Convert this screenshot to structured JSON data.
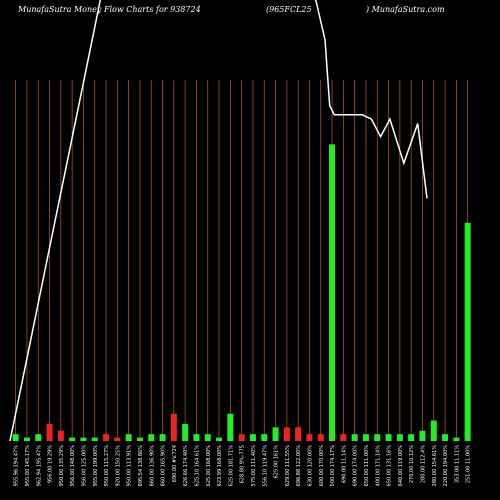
{
  "header": {
    "left": "MunafaSutra  Money Flow  Charts for 938724",
    "middle": "(965FCL25",
    "right": ") MunafaSutra.com"
  },
  "colors": {
    "background": "#000000",
    "grid": "#b5651d",
    "up": "#22ee22",
    "down": "#ee2222",
    "price_line": "#ffffff"
  },
  "chart_data": {
    "type": "bar",
    "title": "",
    "xlabel": "",
    "ylabel": "",
    "bar_value_scale": [
      0,
      100
    ],
    "price_scale": [
      0,
      100
    ],
    "categories": [
      "955.96 194.47%",
      "955.00 145.17%",
      "962.94 195.47%",
      "956.00 19.29%",
      "950.00 135.29%",
      "956.00 148.00%",
      "956.00 125.00%",
      "955.00 199.00%",
      "950.00 115.27%",
      "920.00 150.25%",
      "950.00 113.91%",
      "895.54 138.86%",
      "860.00 136.90%",
      "860.00 165.90%",
      "690.00 #V.724",
      "626.66 174.40%",
      "625.10 164.61%",
      "625.00 168.00%",
      "623.99 168.00%",
      "625.00 181.71%",
      "628.80 9%-775",
      "575.00 111.40%",
      "556.10 119.47%",
      "625.00 161%",
      "629.00 111.55%",
      "696.88 122.00%",
      "630.00 120.00%",
      "600.00 170.00%",
      "500.00 174.17%",
      "690.00 11.14%",
      "690.00 174.00%",
      "650.00 111.00%",
      "400.00 171.14%",
      "650.00 131.16%",
      "640.00 119.00%",
      "270.00 10.12%",
      "280.00 112.4%",
      "280.00 154.61%",
      "220.00 194.00%",
      "353.00 11.11%",
      "251.00 11.00%"
    ],
    "series": [
      {
        "values": [
          2,
          1,
          2,
          5,
          3,
          1,
          1,
          1,
          2,
          1,
          2,
          1,
          2,
          2,
          8,
          5,
          2,
          2,
          1,
          8,
          2,
          2,
          2,
          4,
          4,
          4,
          2,
          2,
          87,
          2,
          2,
          2,
          2,
          2,
          2,
          2,
          3,
          6,
          2,
          1,
          64
        ],
        "direction": [
          "up",
          "up",
          "up",
          "down",
          "down",
          "up",
          "up",
          "up",
          "down",
          "down",
          "up",
          "up",
          "up",
          "up",
          "down",
          "up",
          "up",
          "up",
          "up",
          "up",
          "down",
          "up",
          "up",
          "up",
          "down",
          "down",
          "down",
          "down",
          "up",
          "down",
          "up",
          "up",
          "up",
          "up",
          "up",
          "up",
          "up",
          "up",
          "up",
          "up",
          "up"
        ]
      },
      {
        "values": [
          0,
          2,
          4,
          6,
          9,
          11,
          13,
          16,
          18,
          21,
          23,
          26,
          28,
          31,
          33,
          36,
          38,
          41,
          44,
          48,
          52,
          56,
          60,
          64,
          68,
          72,
          76,
          80,
          84,
          88,
          92,
          96,
          100,
          100,
          80,
          80,
          80,
          80,
          77,
          75,
          74
        ],
        "price_line_x": [
          0,
          0,
          0,
          0,
          0,
          0,
          0,
          0,
          0,
          0
        ],
        "line": [
          [
            0,
            0
          ],
          [
            3.9,
            20
          ],
          [
            7.8,
            40
          ],
          [
            11.7,
            60
          ],
          [
            15.6,
            80
          ],
          [
            19.5,
            100
          ]
        ],
        "upper": [
          [
            66,
            100
          ],
          [
            68,
            91
          ],
          [
            69,
            76
          ],
          [
            70,
            74
          ],
          [
            73,
            74
          ],
          [
            76,
            74
          ],
          [
            78,
            73
          ],
          [
            80,
            69
          ],
          [
            82,
            73
          ],
          [
            85,
            63
          ],
          [
            88,
            72
          ],
          [
            90,
            55
          ]
        ]
      }
    ]
  }
}
